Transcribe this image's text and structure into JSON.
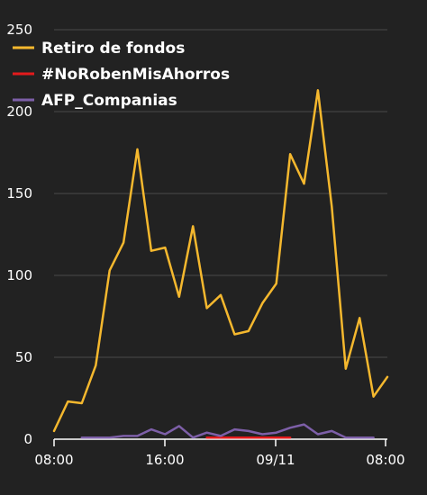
{
  "chart_data": {
    "type": "line",
    "title": "",
    "xlabel": "",
    "ylabel": "",
    "ylim": [
      0,
      250
    ],
    "y_ticks": [
      0,
      50,
      100,
      150,
      200,
      250
    ],
    "x_ticks": [
      "08:00",
      "16:00",
      "09/11",
      "08:00"
    ],
    "grid": true,
    "legend_position": "top-left",
    "series": [
      {
        "name": "Retiro de fondos",
        "color": "#f5b82e",
        "points": [
          [
            0,
            5
          ],
          [
            1,
            23
          ],
          [
            2,
            22
          ],
          [
            3,
            45
          ],
          [
            4,
            103
          ],
          [
            5,
            120
          ],
          [
            6,
            177
          ],
          [
            7,
            115
          ],
          [
            8,
            117
          ],
          [
            9,
            87
          ],
          [
            10,
            130
          ],
          [
            11,
            80
          ],
          [
            12,
            88
          ],
          [
            13,
            64
          ],
          [
            14,
            66
          ],
          [
            15,
            83
          ],
          [
            16,
            95
          ],
          [
            17,
            174
          ],
          [
            18,
            156
          ],
          [
            19,
            213
          ],
          [
            20,
            142
          ],
          [
            21,
            43
          ],
          [
            22,
            74
          ],
          [
            23,
            26
          ],
          [
            24,
            38
          ]
        ]
      },
      {
        "name": "#NoRobenMisAhorros",
        "color": "#e31a1c",
        "points": [
          [
            11,
            1
          ],
          [
            12,
            1
          ],
          [
            13,
            1
          ],
          [
            14,
            1
          ],
          [
            15,
            1
          ],
          [
            16,
            1
          ],
          [
            17,
            1
          ]
        ]
      },
      {
        "name": "AFP_Companias",
        "color": "#7d5fa8",
        "points": [
          [
            2,
            1
          ],
          [
            3,
            1
          ],
          [
            4,
            1
          ],
          [
            5,
            2
          ],
          [
            6,
            2
          ],
          [
            7,
            6
          ],
          [
            8,
            3
          ],
          [
            9,
            8
          ],
          [
            10,
            1
          ],
          [
            11,
            4
          ],
          [
            12,
            2
          ],
          [
            13,
            6
          ],
          [
            14,
            5
          ],
          [
            15,
            3
          ],
          [
            16,
            4
          ],
          [
            17,
            7
          ],
          [
            18,
            9
          ],
          [
            19,
            3
          ],
          [
            20,
            5
          ],
          [
            21,
            1
          ],
          [
            22,
            1
          ],
          [
            23,
            1
          ]
        ]
      }
    ]
  }
}
